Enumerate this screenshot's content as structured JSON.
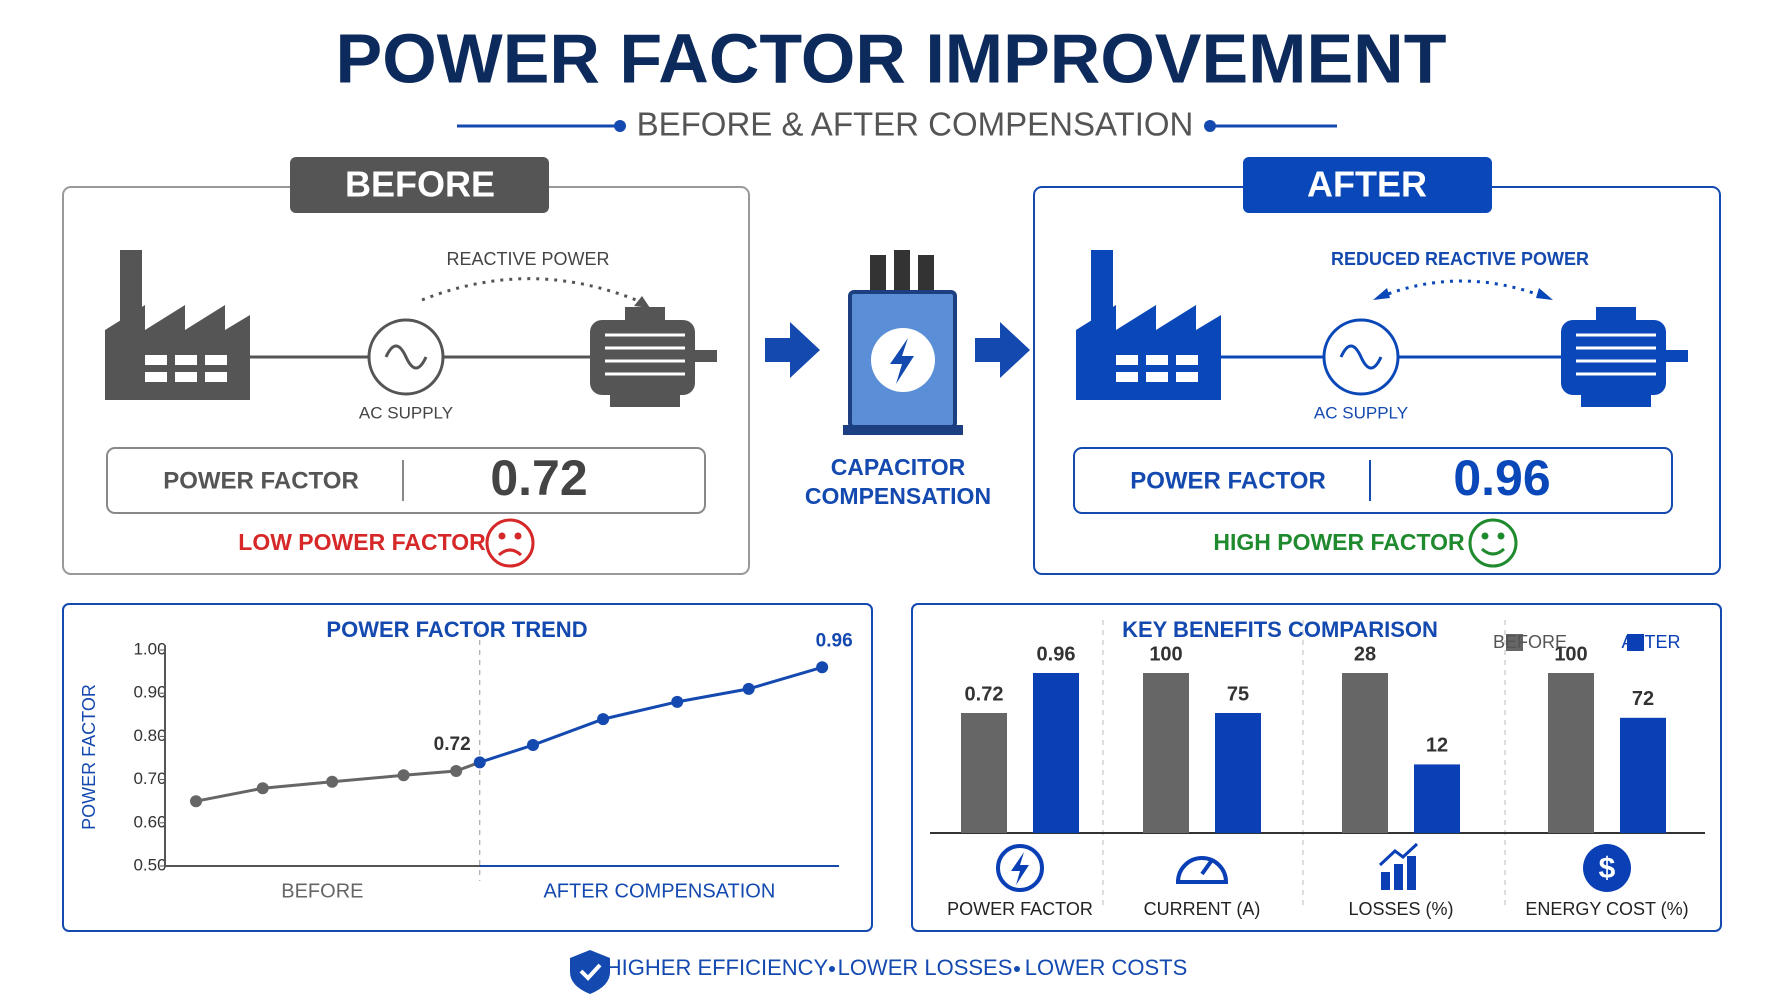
{
  "title": "POWER FACTOR IMPROVEMENT",
  "subtitle": "BEFORE & AFTER COMPENSATION",
  "before": {
    "label": "BEFORE",
    "reactive": "REACTIVE POWER",
    "supply": "AC SUPPLY",
    "pf_label": "POWER FACTOR",
    "pf_value": 0.72,
    "status": "LOW POWER FACTOR"
  },
  "compensation": {
    "lines": [
      "CAPACITOR",
      "COMPENSATION"
    ]
  },
  "after": {
    "label": "AFTER",
    "reactive": "REDUCED REACTIVE POWER",
    "supply": "AC SUPPLY",
    "pf_label": "POWER FACTOR",
    "pf_value": 0.96,
    "status": "HIGH POWER FACTOR"
  },
  "chart_data": [
    {
      "type": "line",
      "title": "POWER FACTOR TREND",
      "ylabel": "POWER FACTOR",
      "xlim": [
        0,
        10
      ],
      "ylim": [
        0.5,
        1.0
      ],
      "yticks": [
        {
          "value": 0.5,
          "label": "0.50"
        },
        {
          "value": 0.6,
          "label": "0.60"
        },
        {
          "value": 0.7,
          "label": "0.70"
        },
        {
          "value": 0.8,
          "label": "0.80"
        },
        {
          "value": 0.9,
          "label": "0.90"
        },
        {
          "value": 1.0,
          "label": "1.00"
        }
      ],
      "series": [
        {
          "name": "BEFORE",
          "color": "#666666",
          "x": [
            0.46,
            1.45,
            2.48,
            3.54,
            4.32
          ],
          "values": [
            0.65,
            0.68,
            0.695,
            0.71,
            0.72
          ]
        },
        {
          "name": "AFTER COMPENSATION",
          "color": "#1449b0",
          "x": [
            4.67,
            5.46,
            6.5,
            7.6,
            8.66,
            9.75
          ],
          "values": [
            0.74,
            0.78,
            0.84,
            0.88,
            0.91,
            0.96
          ]
        }
      ]
    },
    {
      "type": "bar",
      "title": "KEY BENEFITS COMPARISON",
      "categories": [
        "POWER FACTOR",
        "CURRENT (A)",
        "LOSSES (%)",
        "ENERGY COST (%)"
      ],
      "series": [
        {
          "name": "BEFORE",
          "color": "#666666",
          "values": [
            0.72,
            100,
            28,
            100
          ]
        },
        {
          "name": "AFTER",
          "color": "#0a3fb5",
          "values": [
            0.96,
            75,
            12,
            72
          ]
        }
      ],
      "legend": "top-right"
    }
  ],
  "footer": [
    "HIGHER EFFICIENCY",
    "LOWER LOSSES",
    "LOWER COSTS"
  ]
}
